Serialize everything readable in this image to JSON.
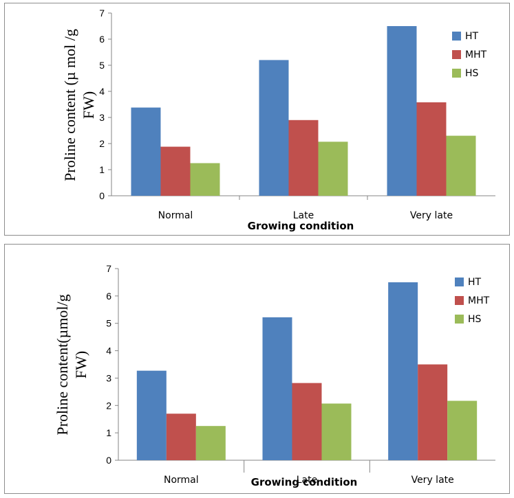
{
  "chart_data": [
    {
      "type": "bar",
      "categories": [
        "Normal",
        "Late",
        "Very late"
      ],
      "series": [
        {
          "name": "HT",
          "values": [
            3.38,
            5.2,
            6.5
          ]
        },
        {
          "name": "MHT",
          "values": [
            1.88,
            2.9,
            3.58
          ]
        },
        {
          "name": "HS",
          "values": [
            1.25,
            2.07,
            2.3
          ]
        }
      ],
      "colors": [
        "#4f81bd",
        "#c0504d",
        "#9bbb59"
      ],
      "title": "",
      "xlabel": "Growing condition",
      "ylabel_lines": [
        "Proline content (µ mol /g",
        "FW)"
      ],
      "ylim": [
        0,
        7
      ],
      "yticks": [
        0,
        1,
        2,
        3,
        4,
        5,
        6,
        7
      ],
      "legend_position": "right",
      "grid": false
    },
    {
      "type": "bar",
      "categories": [
        "Normal",
        "Late",
        "Very late"
      ],
      "series": [
        {
          "name": "HT",
          "values": [
            3.27,
            5.22,
            6.5
          ]
        },
        {
          "name": "MHT",
          "values": [
            1.7,
            2.82,
            3.5
          ]
        },
        {
          "name": "HS",
          "values": [
            1.25,
            2.07,
            2.17
          ]
        }
      ],
      "colors": [
        "#4f81bd",
        "#c0504d",
        "#9bbb59"
      ],
      "title": "",
      "xlabel": "Growing condition",
      "ylabel_lines": [
        "Proline content(µmol/g",
        "FW)"
      ],
      "ylim": [
        0,
        7
      ],
      "yticks": [
        0,
        1,
        2,
        3,
        4,
        5,
        6,
        7
      ],
      "legend_position": "right",
      "grid": false
    }
  ]
}
